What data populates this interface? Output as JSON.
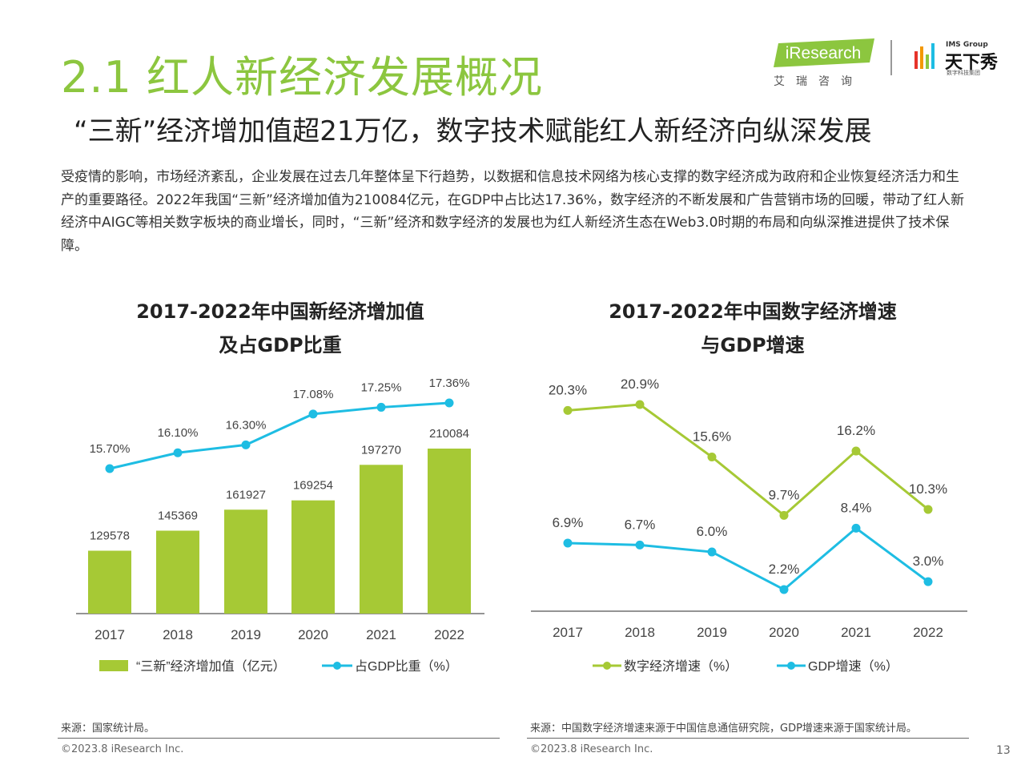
{
  "header": {
    "title": "2.1 红人新经济发展概况",
    "subtitle": "“三新”经济增加值超21万亿，数字技术赋能红人新经济向纵深发展",
    "logo_ir_text": "iResearch",
    "logo_ir_sub": "艾瑞咨询",
    "logo_ims_small": "IMS Group",
    "logo_ims_main": "天下秀",
    "logo_ims_sub": "数字科技集团"
  },
  "body_text": "受疫情的影响，市场经济紊乱，企业发展在过去几年整体呈下行趋势，以数据和信息技术网络为核心支撑的数字经济成为政府和企业恢复经济活力和生产的重要路径。2022年我国“三新”经济增加值为210084亿元，在GDP中占比达17.36%，数字经济的不断发展和广告营销市场的回暖，带动了红人新经济中AIGC等相关数字板块的商业增长，同时，“三新”经济和数字经济的发展也为红人新经济生态在Web3.0时期的布局和向纵深推进提供了技术保障。",
  "chart_data": [
    {
      "type": "bar",
      "title": "2017-2022年中国新经济增加值\n及占GDP比重",
      "title_line1": "2017-2022年中国新经济增加值",
      "title_line2": "及占GDP比重",
      "categories": [
        "2017",
        "2018",
        "2019",
        "2020",
        "2021",
        "2022"
      ],
      "series": [
        {
          "name": "“三新”经济增加值（亿元）",
          "type": "bar",
          "values": [
            129578,
            145369,
            161927,
            169254,
            197270,
            210084
          ],
          "labels": [
            "129578",
            "145369",
            "161927",
            "169254",
            "197270",
            "210084"
          ],
          "color": "#a6c935"
        },
        {
          "name": "占GDP比重（%）",
          "type": "line",
          "values": [
            15.7,
            16.1,
            16.3,
            17.08,
            17.25,
            17.36
          ],
          "labels": [
            "15.70%",
            "16.10%",
            "16.30%",
            "17.08%",
            "17.25%",
            "17.36%"
          ],
          "color": "#1ebde3"
        }
      ],
      "legend_position": "bottom",
      "grid": false
    },
    {
      "type": "line",
      "title": "2017-2022年中国数字经济增速\n与GDP增速",
      "title_line1": "2017-2022年中国数字经济增速",
      "title_line2": "与GDP增速",
      "categories": [
        "2017",
        "2018",
        "2019",
        "2020",
        "2021",
        "2022"
      ],
      "series": [
        {
          "name": "数字经济增速（%）",
          "values": [
            20.3,
            20.9,
            15.6,
            9.7,
            16.2,
            10.3
          ],
          "labels": [
            "20.3%",
            "20.9%",
            "15.6%",
            "9.7%",
            "16.2%",
            "10.3%"
          ],
          "color": "#a6c935"
        },
        {
          "name": "GDP增速（%）",
          "values": [
            6.9,
            6.7,
            6.0,
            2.2,
            8.4,
            3.0
          ],
          "labels": [
            "6.9%",
            "6.7%",
            "6.0%",
            "2.2%",
            "8.4%",
            "3.0%"
          ],
          "color": "#1ebde3"
        }
      ],
      "legend_position": "bottom",
      "grid": false
    }
  ],
  "footer": {
    "source_left": "来源：国家统计局。",
    "source_right": "来源：中国数字经济增速来源于中国信息通信研究院，GDP增速来源于国家统计局。",
    "copyright_left": "©2023.8 iResearch Inc.",
    "copyright_right": "©2023.8 iResearch Inc.",
    "page_number": "13"
  }
}
